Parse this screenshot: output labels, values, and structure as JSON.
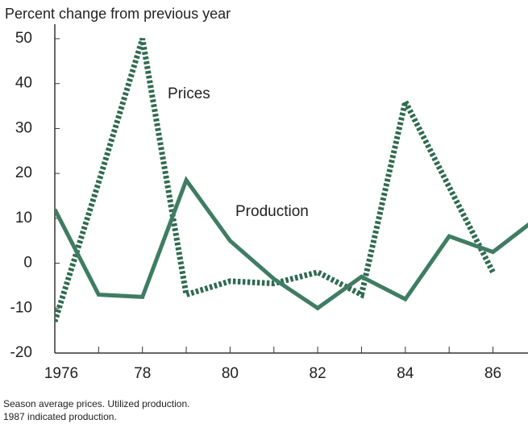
{
  "chart_data": {
    "type": "line",
    "title": "Percent change from previous year",
    "x": [
      1976,
      1977,
      1978,
      1979,
      1980,
      1981,
      1982,
      1983,
      1984,
      1985,
      1986,
      1987
    ],
    "series": [
      {
        "name": "Prices",
        "color": "#2f6b50",
        "style": "dotted",
        "values": [
          -13,
          18,
          50,
          -7,
          -4,
          -4.5,
          -2,
          -7,
          36,
          17,
          -2,
          null
        ]
      },
      {
        "name": "Production",
        "color": "#3f7d62",
        "style": "solid",
        "values": [
          12,
          -7,
          -7.5,
          18.5,
          5,
          -3.5,
          -10,
          -3,
          -8,
          6,
          2.5,
          10
        ]
      }
    ],
    "xlim": [
      1976,
      1986.8
    ],
    "ylim": [
      -20,
      50
    ],
    "yticks": [
      -20,
      -10,
      0,
      10,
      20,
      30,
      40,
      50
    ],
    "xticks": [
      1976,
      {
        "value": 1978,
        "label": "78"
      },
      {
        "value": 1980,
        "label": "80"
      },
      {
        "value": 1982,
        "label": "82"
      },
      {
        "value": 1984,
        "label": "84"
      },
      {
        "value": 1986,
        "label": "86"
      }
    ],
    "xminor_ticks": [
      1977,
      1979,
      1981,
      1983,
      1985
    ],
    "footnotes": [
      "Season average prices.  Utilized production.",
      "1987 indicated production."
    ]
  }
}
